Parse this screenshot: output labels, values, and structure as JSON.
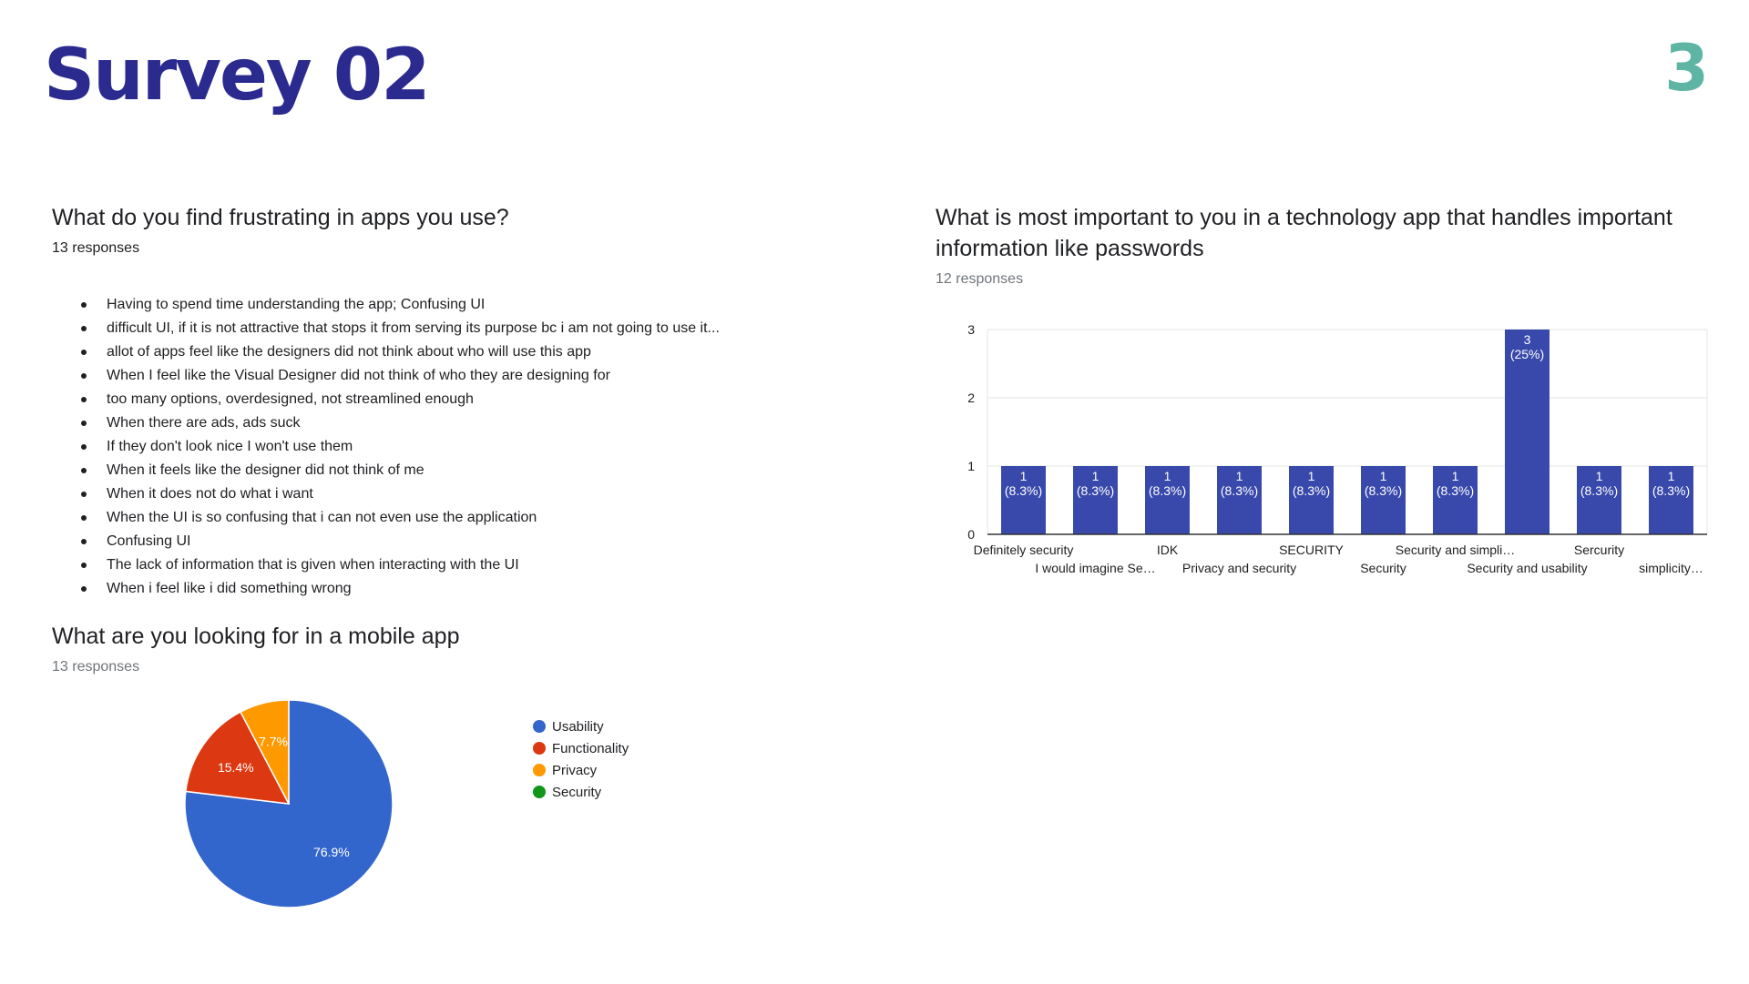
{
  "slide": {
    "title": "Survey 02",
    "number": "3"
  },
  "frustrations": {
    "question": "What do you find frustrating in apps you use?",
    "responses": "13 responses",
    "items": [
      "Having to spend time understanding the app; Confusing UI",
      "difficult UI, if it is not attractive that stops it from serving its purpose bc i am not going to use it...",
      "allot of apps feel like the designers did not think about who will use this app",
      "When I feel like the Visual Designer did not think of who they are designing for",
      "too many options, overdesigned, not streamlined enough",
      "When there are ads, ads suck",
      "If they don't look nice I won't use them",
      "When it feels like the designer did not think of me",
      "When it does not do what i want",
      "When the UI is so confusing that i can not even use the application",
      "Confusing UI",
      "The lack of information that is given when interacting with the UI",
      "When i feel like i did something wrong"
    ]
  },
  "mobile": {
    "question": "What are you looking for in a mobile app",
    "responses": "13 responses"
  },
  "important": {
    "question": "What is most important to you in a technology app that handles important information like passwords",
    "responses": "12 responses"
  },
  "chart_data": [
    {
      "type": "pie",
      "title": "What are you looking for in a mobile app",
      "legend_position": "right",
      "slices": [
        {
          "label": "Usability",
          "value": 76.9,
          "display": "76.9%",
          "color": "#3366cc"
        },
        {
          "label": "Functionality",
          "value": 15.4,
          "display": "15.4%",
          "color": "#dc3912"
        },
        {
          "label": "Privacy",
          "value": 7.7,
          "display": "7.7%",
          "color": "#ff9900"
        },
        {
          "label": "Security",
          "value": 0,
          "display": "",
          "color": "#109618"
        }
      ]
    },
    {
      "type": "bar",
      "title": "What is most important to you in a technology app that handles important information like passwords",
      "categories": [
        "Definitely security",
        "I would imagine Se…",
        "IDK",
        "Privacy and security",
        "SECURITY",
        "Security",
        "Security and simpli…",
        "Security and usability",
        "Sercurity",
        "simplicity…"
      ],
      "values": [
        1,
        1,
        1,
        1,
        1,
        1,
        1,
        3,
        1,
        1
      ],
      "value_labels": [
        "(8.3%)",
        "(8.3%)",
        "(8.3%)",
        "(8.3%)",
        "(8.3%)",
        "(8.3%)",
        "(8.3%)",
        "(25%)",
        "(8.3%)",
        "(8.3%)"
      ],
      "ylim": [
        0,
        3
      ],
      "yticks": [
        0,
        1,
        2,
        3
      ],
      "grid": true,
      "bar_color": "#3949ab"
    }
  ]
}
